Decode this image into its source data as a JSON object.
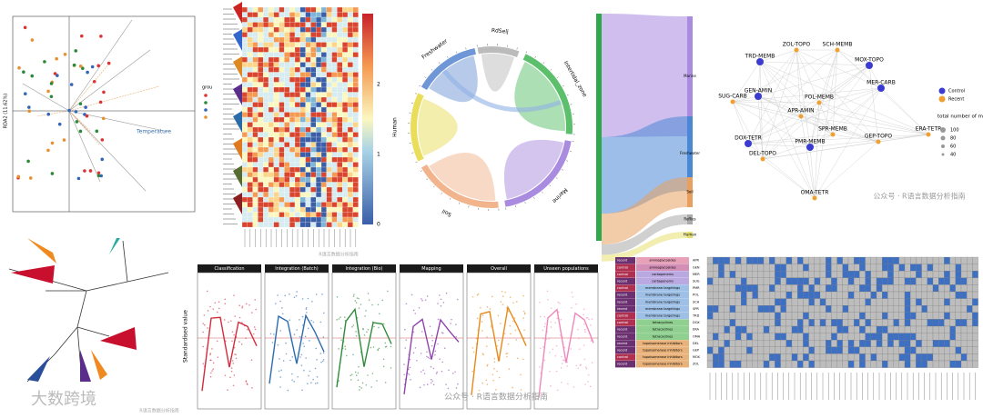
{
  "rda": {
    "axis_label": "RDA2 (11.62%)",
    "arrow_label": "Temperature",
    "legend_title": "grou"
  },
  "heatmap": {
    "colorbar_ticks": [
      "0",
      "1",
      "2"
    ],
    "watermark": "R语言数据分析指南"
  },
  "chord": {
    "sectors": [
      "RdSelj",
      "Intertidal_zone",
      "Marine",
      "Soil",
      "Human",
      "Freshwater"
    ]
  },
  "sankey": {
    "targets": [
      "Marine",
      "Freshwater",
      "Soil",
      "Reflies",
      "Human"
    ]
  },
  "network": {
    "nodes": [
      {
        "label": "ZOL-TOPO",
        "group": "Recent"
      },
      {
        "label": "SCH-MEMB",
        "group": "Recent"
      },
      {
        "label": "TRD-MEMB",
        "group": "Control"
      },
      {
        "label": "MOX-TOPO",
        "group": "Control"
      },
      {
        "label": "MER-CARB",
        "group": "Control"
      },
      {
        "label": "GEN-AMIN",
        "group": "Control"
      },
      {
        "label": "SUG-CARB",
        "group": "Recent"
      },
      {
        "label": "POL-MEMB",
        "group": "Recent"
      },
      {
        "label": "APR-AMIN",
        "group": "Recent"
      },
      {
        "label": "SPR-MEMB",
        "group": "Recent"
      },
      {
        "label": "DOX-TETR",
        "group": "Control"
      },
      {
        "label": "GEP-TOPO",
        "group": "Recent"
      },
      {
        "label": "ERA-TETR",
        "group": "Recent"
      },
      {
        "label": "PMR-MEMB",
        "group": "Control"
      },
      {
        "label": "DEL-TOPO",
        "group": "Recent"
      },
      {
        "label": "OMA-TETR",
        "group": "Recent"
      }
    ],
    "legend": [
      "Control",
      "Recent"
    ],
    "size_title": "total number of mutated genes",
    "size_ticks": [
      "100",
      "80",
      "60",
      "40"
    ],
    "watermark": "公众号 · R语言数据分析指南"
  },
  "facets": {
    "titles": [
      "Classification",
      "Integration (Batch)",
      "Integration (Bio)",
      "Mapping",
      "Overall",
      "Unseen populations"
    ],
    "y_label": "Standardised value",
    "watermark": "公众号 · R语言数据分析指南"
  },
  "matrix": {
    "rows": [
      [
        "recent",
        "aminoglycosides",
        "APR"
      ],
      [
        "control",
        "aminoglycosides",
        "GEN"
      ],
      [
        "control",
        "carbapenems",
        "MER"
      ],
      [
        "recent",
        "carbapenems",
        "SUG"
      ],
      [
        "control",
        "membrane targetings",
        "PMR"
      ],
      [
        "recent",
        "membrane targetings",
        "POL"
      ],
      [
        "recent",
        "membrane targetings",
        "SCH"
      ],
      [
        "recent",
        "membrane targetings",
        "SPR"
      ],
      [
        "control",
        "membrane targetings",
        "TRD"
      ],
      [
        "control",
        "tetracyclines",
        "DOX"
      ],
      [
        "recent",
        "tetracyclines",
        "ERA"
      ],
      [
        "recent",
        "tetracyclines",
        "OMA"
      ],
      [
        "recent",
        "topoisomerase inhibitors",
        "DEL"
      ],
      [
        "recent",
        "topoisomerase inhibitors",
        "GEP"
      ],
      [
        "control",
        "topoisomerase inhibitors",
        "MOX"
      ],
      [
        "recent",
        "topoisomerase inhibitors",
        "ZOL"
      ]
    ]
  },
  "footer": {
    "logo": "大数跨境",
    "caption": "R语言数据分析指南"
  }
}
